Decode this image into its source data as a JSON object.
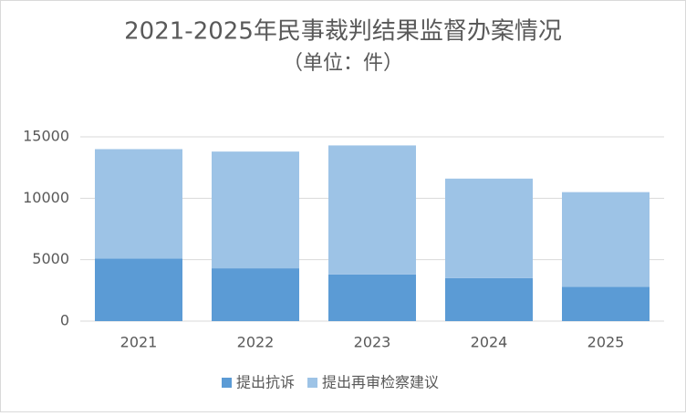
{
  "chart_data": {
    "type": "stacked_bar",
    "title": "2021-2025年民事裁判结果监督办案情况",
    "subtitle": "（单位：件）",
    "categories": [
      "2021",
      "2022",
      "2023",
      "2024",
      "2025"
    ],
    "series": [
      {
        "name": "提出抗诉",
        "color": "#5b9bd5",
        "values": [
          5100,
          4300,
          3800,
          3500,
          2800
        ]
      },
      {
        "name": "提出再审检察建议",
        "color": "#9dc3e6",
        "values": [
          8900,
          9500,
          10500,
          8100,
          7700
        ]
      }
    ],
    "ylim": [
      0,
      15000
    ],
    "yticks": [
      0,
      5000,
      10000,
      15000
    ],
    "grid": true,
    "legend": "bottom"
  }
}
